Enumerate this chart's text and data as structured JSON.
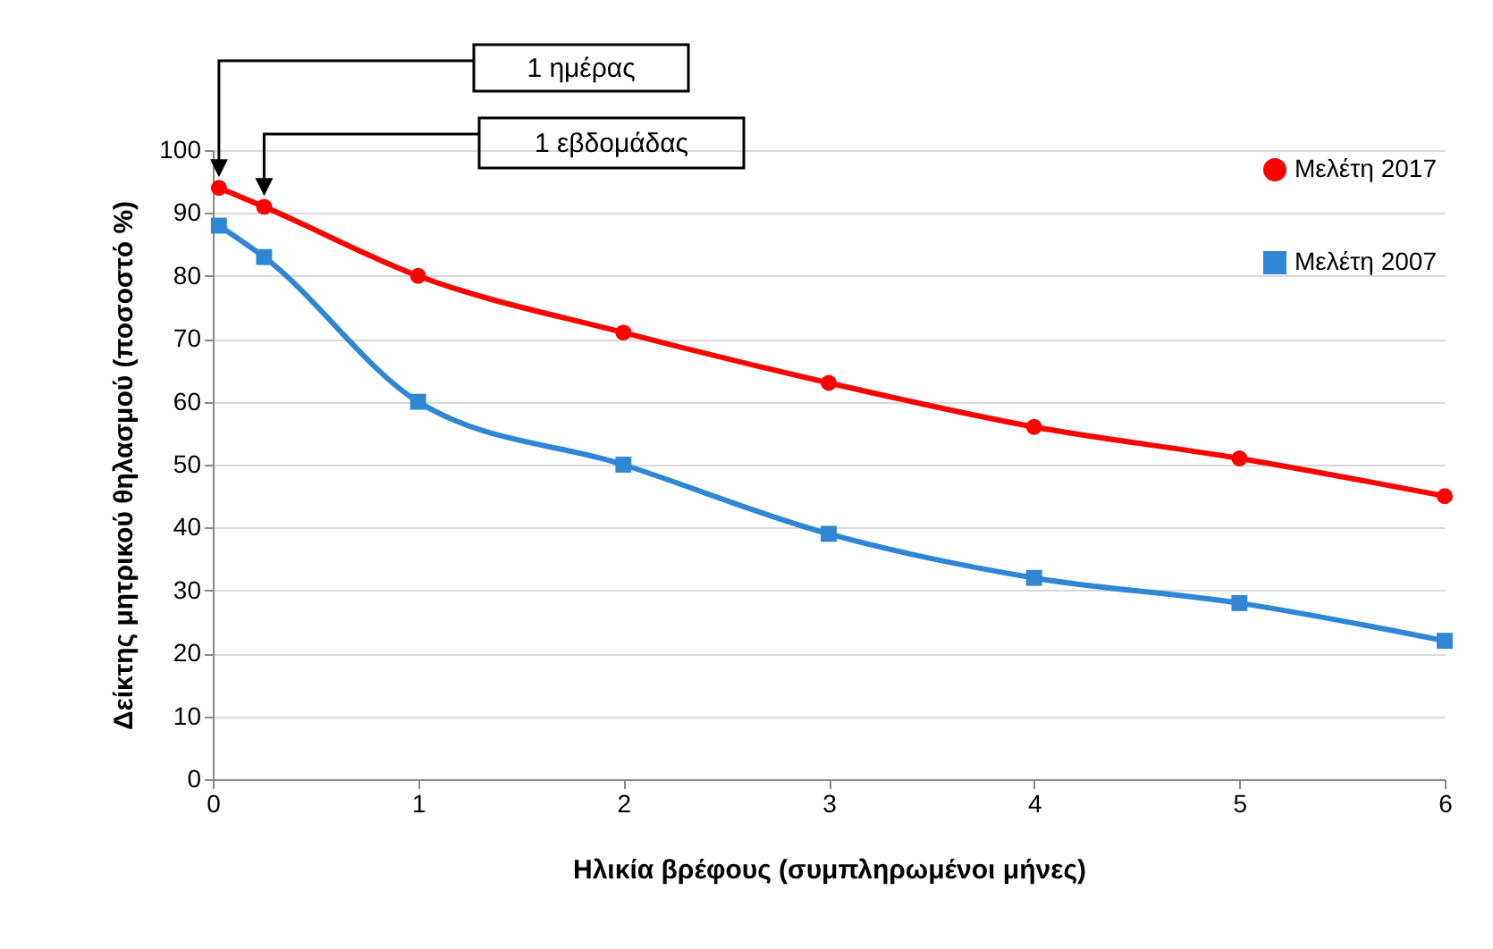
{
  "chart_data": {
    "type": "line",
    "xlabel": "Ηλικία  βρέφους (συμπληρωμένοι μήνες)",
    "ylabel": "Δείκτης μητρικού θηλασμού (ποσοστό %)",
    "x": [
      0.03,
      0.25,
      1,
      2,
      3,
      4,
      5,
      6
    ],
    "series": [
      {
        "name": "Μελέτη 2017",
        "color": "#ff0000",
        "marker": "circle",
        "line_style": "solid",
        "values": [
          94,
          91,
          80,
          71,
          63,
          56,
          51,
          45
        ]
      },
      {
        "name": "Μελέτη 2007",
        "color": "#2e86d4",
        "marker": "square",
        "line_style": "solid",
        "values": [
          88,
          83,
          60,
          50,
          39,
          32,
          28,
          22
        ]
      }
    ],
    "xlim": [
      0,
      6
    ],
    "xticks": [
      0,
      1,
      2,
      3,
      4,
      5,
      6
    ],
    "ylim": [
      0,
      100
    ],
    "yticks": [
      0,
      10,
      20,
      30,
      40,
      50,
      60,
      70,
      80,
      90,
      100
    ],
    "grid": "y",
    "legend": "top right",
    "annotations": [
      "1 ημέρας",
      "1 εβδομάδας"
    ]
  }
}
